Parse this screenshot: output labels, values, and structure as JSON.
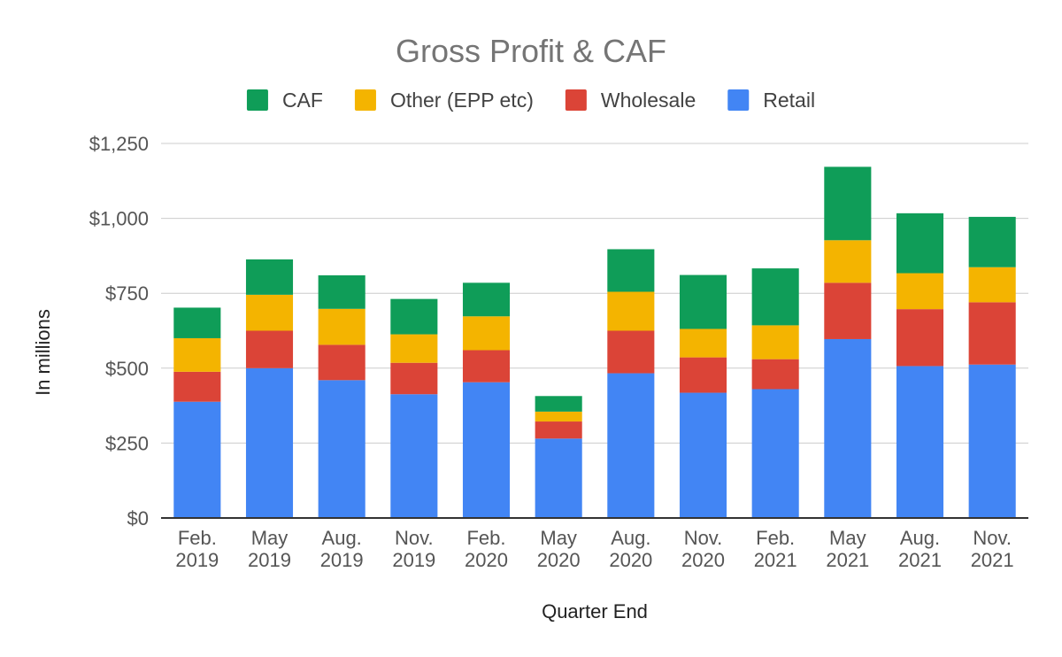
{
  "chart_data": {
    "type": "bar",
    "stacked": true,
    "title": "Gross Profit & CAF",
    "xlabel": "Quarter End",
    "ylabel": "In millions",
    "ylim": [
      0,
      1250
    ],
    "yticks": [
      "$0",
      "$250",
      "$500",
      "$750",
      "$1,000",
      "$1,250"
    ],
    "ytick_values": [
      0,
      250,
      500,
      750,
      1000,
      1250
    ],
    "grid": true,
    "legend_position": "top",
    "categories": [
      [
        "Feb.",
        "2019"
      ],
      [
        "May",
        "2019"
      ],
      [
        "Aug.",
        "2019"
      ],
      [
        "Nov.",
        "2019"
      ],
      [
        "Feb.",
        "2020"
      ],
      [
        "May",
        "2020"
      ],
      [
        "Aug.",
        "2020"
      ],
      [
        "Nov.",
        "2020"
      ],
      [
        "Feb.",
        "2021"
      ],
      [
        "May",
        "2021"
      ],
      [
        "Aug.",
        "2021"
      ],
      [
        "Nov.",
        "2021"
      ]
    ],
    "series": [
      {
        "name": "Retail",
        "color": "#4285F4",
        "values": [
          388,
          500,
          460,
          413,
          453,
          265,
          483,
          418,
          430,
          597,
          507,
          512
        ]
      },
      {
        "name": "Wholesale",
        "color": "#DB4437",
        "values": [
          100,
          125,
          118,
          105,
          107,
          57,
          142,
          118,
          100,
          188,
          190,
          208
        ]
      },
      {
        "name": "Other (EPP etc)",
        "color": "#F4B400",
        "values": [
          112,
          120,
          120,
          95,
          113,
          33,
          130,
          95,
          113,
          142,
          120,
          117
        ]
      },
      {
        "name": "CAF",
        "color": "#0F9D58",
        "values": [
          102,
          118,
          112,
          118,
          112,
          52,
          142,
          180,
          190,
          245,
          200,
          168
        ]
      }
    ],
    "legend_order": [
      "CAF",
      "Other (EPP etc)",
      "Wholesale",
      "Retail"
    ]
  }
}
